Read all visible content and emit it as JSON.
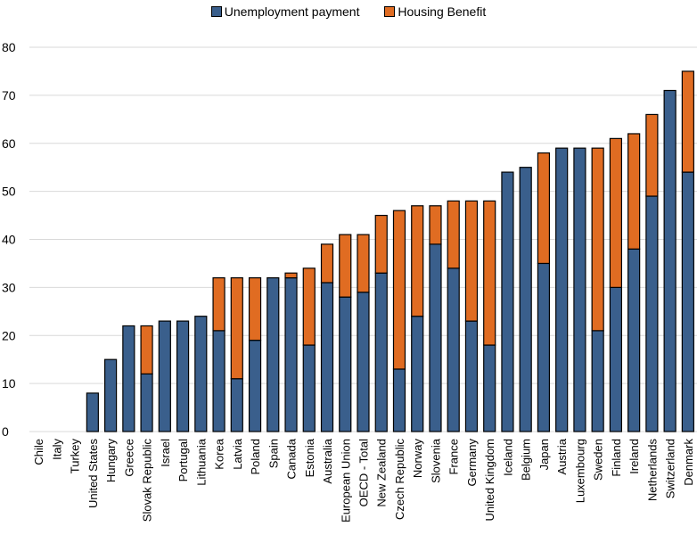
{
  "chart_data": {
    "type": "bar",
    "stacked": true,
    "title": "",
    "xlabel": "",
    "ylabel": "",
    "ylim": [
      0,
      80
    ],
    "yticks": [
      0,
      10,
      20,
      30,
      40,
      50,
      60,
      70,
      80
    ],
    "grid": true,
    "legend_position": "top-center",
    "categories": [
      "Chile",
      "Italy",
      "Turkey",
      "United States",
      "Hungary",
      "Greece",
      "Slovak Republic",
      "Israel",
      "Portugal",
      "Lithuania",
      "Korea",
      "Latvia",
      "Poland",
      "Spain",
      "Canada",
      "Estonia",
      "Australia",
      "European Union",
      "OECD - Total",
      "New Zealand",
      "Czech Republic",
      "Norway",
      "Slovenia",
      "France",
      "Germany",
      "United Kingdom",
      "Iceland",
      "Belgium",
      "Japan",
      "Austria",
      "Luxembourg",
      "Sweden",
      "Finland",
      "Ireland",
      "Netherlands",
      "Switzerland",
      "Denmark"
    ],
    "series": [
      {
        "name": "Unemployment payment",
        "color": "#3A5F8C",
        "values": [
          0,
          0,
          0,
          8,
          15,
          22,
          12,
          23,
          23,
          24,
          21,
          11,
          19,
          32,
          32,
          18,
          31,
          28,
          29,
          33,
          13,
          24,
          39,
          34,
          23,
          18,
          54,
          55,
          35,
          59,
          59,
          21,
          30,
          38,
          49,
          71,
          54
        ]
      },
      {
        "name": "Housing Benefit",
        "color": "#E06C22",
        "values": [
          0,
          0,
          0,
          0,
          0,
          0,
          10,
          0,
          0,
          0,
          11,
          21,
          13,
          0,
          1,
          16,
          8,
          13,
          12,
          12,
          33,
          23,
          8,
          14,
          25,
          30,
          0,
          0,
          23,
          0,
          0,
          38,
          31,
          24,
          17,
          0,
          21
        ]
      }
    ]
  }
}
